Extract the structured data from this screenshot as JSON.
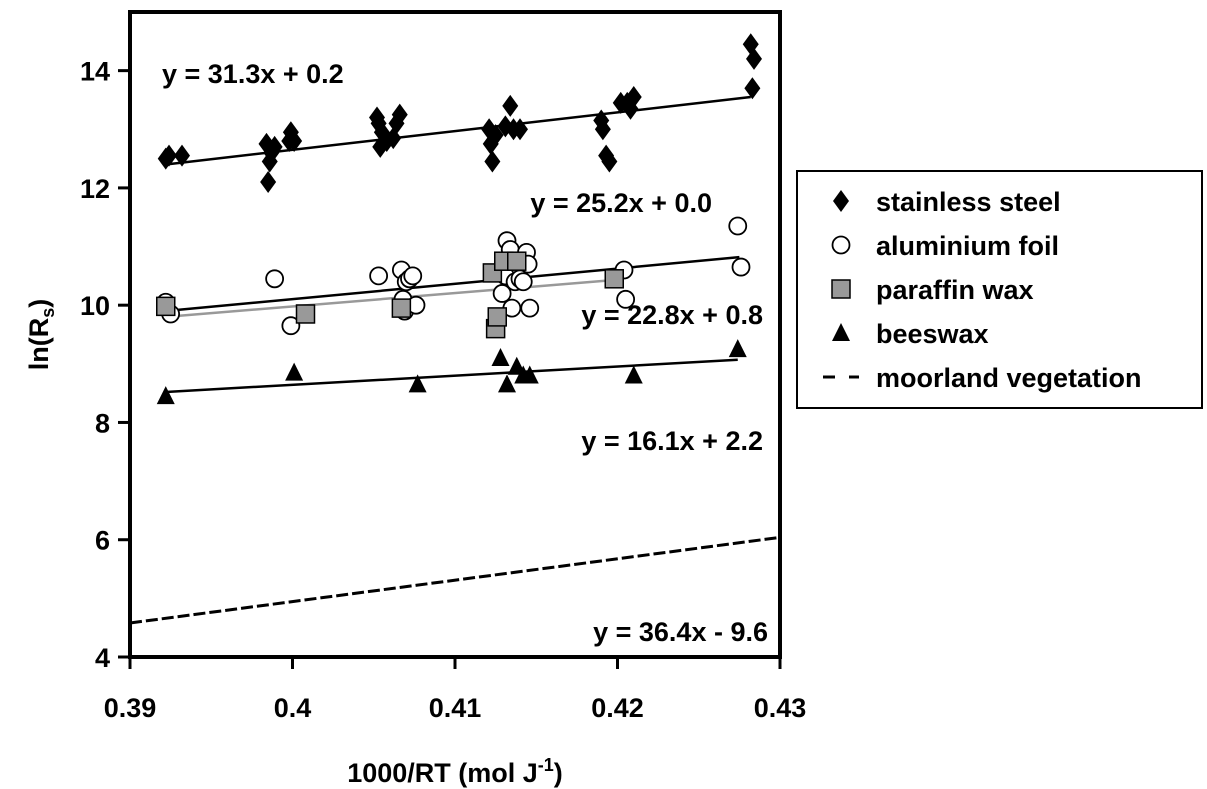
{
  "chart_data": {
    "type": "scatter",
    "xlabel": "1000/RT (mol J",
    "xlabel_sup": "-1",
    "xlabel_end": ")",
    "ylabel": "ln(R",
    "ylabel_sub": "s",
    "ylabel_end": ")",
    "xlim": [
      0.39,
      0.43
    ],
    "ylim": [
      4,
      15
    ],
    "x_ticks": [
      0.39,
      0.4,
      0.41,
      0.42,
      0.43
    ],
    "x_tick_labels": [
      "0.39",
      "0.4",
      "0.41",
      "0.42",
      "0.43"
    ],
    "y_ticks": [
      4,
      6,
      8,
      10,
      12,
      14
    ],
    "y_tick_labels": [
      "4",
      "6",
      "8",
      "10",
      "12",
      "14"
    ],
    "grid": false,
    "legend_position": "right",
    "series": [
      {
        "name": "stainless steel",
        "marker": "diamond",
        "color": "#000000",
        "equation": "y = 31.3x + 0.2",
        "points": [
          [
            0.3922,
            12.5
          ],
          [
            0.3924,
            12.55
          ],
          [
            0.3932,
            12.55
          ],
          [
            0.3984,
            12.75
          ],
          [
            0.3985,
            12.1
          ],
          [
            0.3986,
            12.45
          ],
          [
            0.3987,
            12.6
          ],
          [
            0.3989,
            12.7
          ],
          [
            0.3998,
            12.8
          ],
          [
            0.3999,
            12.95
          ],
          [
            0.4001,
            12.8
          ],
          [
            0.4052,
            13.2
          ],
          [
            0.4053,
            13.1
          ],
          [
            0.4054,
            12.7
          ],
          [
            0.4055,
            12.95
          ],
          [
            0.4058,
            12.8
          ],
          [
            0.4062,
            12.85
          ],
          [
            0.4064,
            13.1
          ],
          [
            0.4066,
            13.25
          ],
          [
            0.4121,
            13.0
          ],
          [
            0.4122,
            12.75
          ],
          [
            0.4123,
            12.45
          ],
          [
            0.4125,
            12.9
          ],
          [
            0.4131,
            13.05
          ],
          [
            0.4134,
            13.4
          ],
          [
            0.4136,
            13.0
          ],
          [
            0.414,
            13.0
          ],
          [
            0.419,
            13.15
          ],
          [
            0.4191,
            13.0
          ],
          [
            0.4193,
            12.55
          ],
          [
            0.4195,
            12.45
          ],
          [
            0.4202,
            13.45
          ],
          [
            0.4206,
            13.45
          ],
          [
            0.4208,
            13.35
          ],
          [
            0.421,
            13.55
          ],
          [
            0.4282,
            14.45
          ],
          [
            0.4284,
            14.2
          ],
          [
            0.4283,
            13.7
          ]
        ],
        "trend": {
          "x": [
            0.3922,
            0.4282
          ],
          "y": [
            12.4,
            13.55
          ],
          "color": "#000000"
        }
      },
      {
        "name": "aluminium foil",
        "marker": "circle-open",
        "color": "#000000",
        "equation": "y = 25.2x + 0.0",
        "points": [
          [
            0.3922,
            10.05
          ],
          [
            0.3925,
            9.85
          ],
          [
            0.3989,
            10.45
          ],
          [
            0.3999,
            9.65
          ],
          [
            0.4053,
            10.5
          ],
          [
            0.4067,
            10.6
          ],
          [
            0.4068,
            10.1
          ],
          [
            0.4069,
            9.9
          ],
          [
            0.407,
            10.4
          ],
          [
            0.4072,
            10.45
          ],
          [
            0.4074,
            10.5
          ],
          [
            0.4076,
            10.0
          ],
          [
            0.4129,
            10.2
          ],
          [
            0.4131,
            10.5
          ],
          [
            0.4132,
            11.1
          ],
          [
            0.4134,
            10.95
          ],
          [
            0.4135,
            9.95
          ],
          [
            0.4137,
            10.4
          ],
          [
            0.4139,
            10.75
          ],
          [
            0.414,
            10.45
          ],
          [
            0.4142,
            10.4
          ],
          [
            0.4144,
            10.9
          ],
          [
            0.4145,
            10.7
          ],
          [
            0.4146,
            9.95
          ],
          [
            0.4204,
            10.6
          ],
          [
            0.4205,
            10.1
          ],
          [
            0.4274,
            11.35
          ],
          [
            0.4276,
            10.65
          ]
        ],
        "trend": {
          "x": [
            0.3922,
            0.4275
          ],
          "y": [
            9.9,
            10.82
          ],
          "color": "#000000"
        }
      },
      {
        "name": "paraffin wax",
        "marker": "square",
        "color": "#999999",
        "equation": "y = 22.8x + 0.8",
        "points": [
          [
            0.3922,
            9.98
          ],
          [
            0.4008,
            9.85
          ],
          [
            0.4067,
            9.95
          ],
          [
            0.4123,
            10.55
          ],
          [
            0.4125,
            9.6
          ],
          [
            0.4126,
            9.8
          ],
          [
            0.413,
            10.75
          ],
          [
            0.4138,
            10.75
          ],
          [
            0.4198,
            10.45
          ]
        ],
        "trend": {
          "x": [
            0.3922,
            0.4198
          ],
          "y": [
            9.8,
            10.43
          ],
          "color": "#999999"
        }
      },
      {
        "name": "beeswax",
        "marker": "triangle",
        "color": "#000000",
        "equation": "y = 16.1x + 2.2",
        "points": [
          [
            0.3922,
            8.45
          ],
          [
            0.4001,
            8.85
          ],
          [
            0.4077,
            8.65
          ],
          [
            0.4128,
            9.1
          ],
          [
            0.4132,
            8.65
          ],
          [
            0.4138,
            8.95
          ],
          [
            0.4142,
            8.8
          ],
          [
            0.4146,
            8.8
          ],
          [
            0.421,
            8.8
          ],
          [
            0.4274,
            9.25
          ]
        ],
        "trend": {
          "x": [
            0.3922,
            0.4274
          ],
          "y": [
            8.52,
            9.07
          ],
          "color": "#000000"
        }
      },
      {
        "name": "moorland vegetation",
        "marker": "dashed-line",
        "color": "#000000",
        "equation": "y = 36.4x - 9.6",
        "points": [],
        "trend": {
          "x": [
            0.39,
            0.43
          ],
          "y": [
            4.58,
            6.04
          ],
          "color": "#000000"
        }
      }
    ]
  }
}
